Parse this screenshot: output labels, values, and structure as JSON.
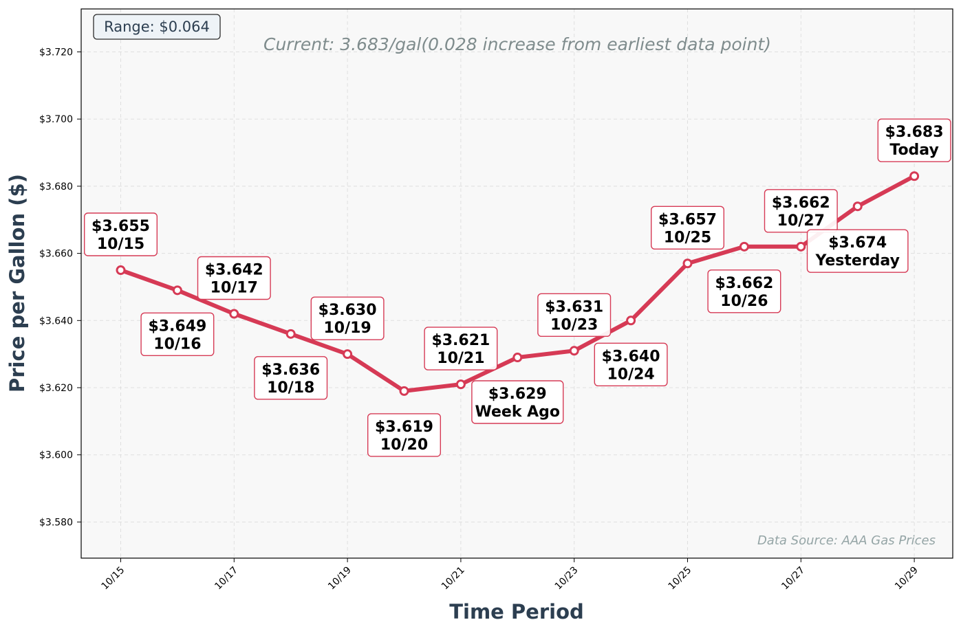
{
  "chart_data": {
    "type": "line",
    "xlabel": "Time Period",
    "ylabel": "Price per Gallon ($)",
    "subtitle": "Current: 3.683/gal(0.028 increase from earliest data point)",
    "range_box": "Range: $0.064",
    "source": "Data Source: AAA Gas Prices",
    "ylim": [
      3.568,
      3.733
    ],
    "yticks": [
      3.58,
      3.6,
      3.62,
      3.64,
      3.66,
      3.68,
      3.7,
      3.72
    ],
    "ytick_labels": [
      "$3.580",
      "$3.600",
      "$3.620",
      "$3.640",
      "$3.660",
      "$3.680",
      "$3.700",
      "$3.720"
    ],
    "xtick_labels": [
      "10/15",
      "10/17",
      "10/19",
      "10/21",
      "10/23",
      "10/25",
      "10/27",
      "10/29"
    ],
    "grid": true,
    "series": [
      {
        "color": "#d63a55",
        "points": [
          {
            "x": "10/15",
            "y": 3.655,
            "label": [
              "$3.655",
              "10/15"
            ]
          },
          {
            "x": "10/16",
            "y": 3.649,
            "label": [
              "$3.649",
              "10/16"
            ]
          },
          {
            "x": "10/17",
            "y": 3.642,
            "label": [
              "$3.642",
              "10/17"
            ]
          },
          {
            "x": "10/18",
            "y": 3.636,
            "label": [
              "$3.636",
              "10/18"
            ]
          },
          {
            "x": "10/19",
            "y": 3.63,
            "label": [
              "$3.630",
              "10/19"
            ]
          },
          {
            "x": "10/20",
            "y": 3.619,
            "label": [
              "$3.619",
              "10/20"
            ]
          },
          {
            "x": "10/21",
            "y": 3.621,
            "label": [
              "$3.621",
              "10/21"
            ]
          },
          {
            "x": "10/22",
            "y": 3.629,
            "label": [
              "$3.629",
              "Week Ago"
            ]
          },
          {
            "x": "10/23",
            "y": 3.631,
            "label": [
              "$3.631",
              "10/23"
            ]
          },
          {
            "x": "10/24",
            "y": 3.64,
            "label": [
              "$3.640",
              "10/24"
            ]
          },
          {
            "x": "10/25",
            "y": 3.657,
            "label": [
              "$3.657",
              "10/25"
            ]
          },
          {
            "x": "10/26",
            "y": 3.662,
            "label": [
              "$3.662",
              "10/26"
            ]
          },
          {
            "x": "10/27",
            "y": 3.662,
            "label": [
              "$3.662",
              "10/27"
            ]
          },
          {
            "x": "10/28",
            "y": 3.674,
            "label": [
              "$3.674",
              "Yesterday"
            ]
          },
          {
            "x": "10/29",
            "y": 3.683,
            "label": [
              "$3.683",
              "Today"
            ]
          }
        ]
      }
    ]
  }
}
